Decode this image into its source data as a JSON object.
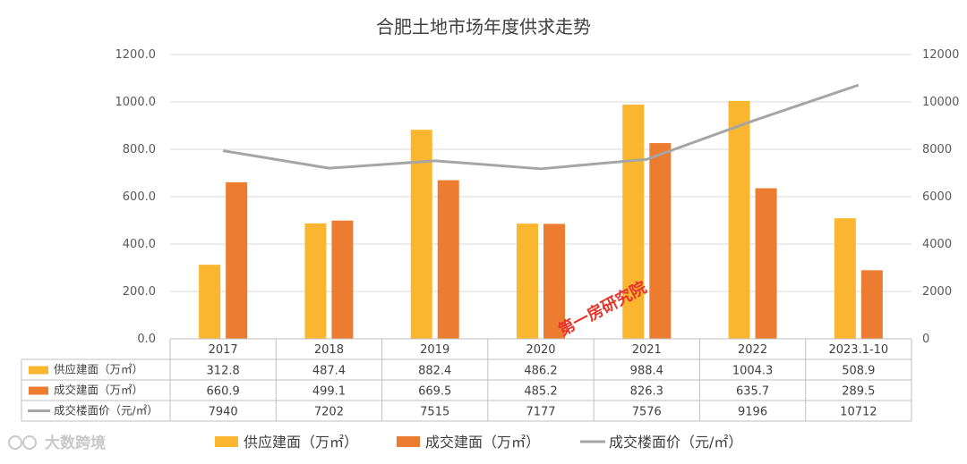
{
  "watermark": {
    "text": "大数跨境"
  },
  "stamp": {
    "text": "第一房研究院"
  },
  "chart_data": {
    "type": "bar",
    "title": "合肥土地市场年度供求走势",
    "categories": [
      "2017",
      "2018",
      "2019",
      "2020",
      "2021",
      "2022",
      "2023.1-10"
    ],
    "left_axis": {
      "ylim": [
        0,
        1200
      ],
      "ticks": [
        "0.0",
        "200.0",
        "400.0",
        "600.0",
        "800.0",
        "1000.0",
        "1200.0"
      ]
    },
    "right_axis": {
      "ylim": [
        0,
        12000
      ],
      "ticks": [
        "0",
        "2000",
        "4000",
        "6000",
        "8000",
        "10000",
        "12000"
      ]
    },
    "series": [
      {
        "name": "供应建面（万㎡）",
        "type": "bar",
        "axis": "left",
        "color": "#fbb62f",
        "values": [
          312.8,
          487.4,
          882.4,
          486.2,
          988.4,
          1004.3,
          508.9
        ],
        "labels": [
          "312.8",
          "487.4",
          "882.4",
          "486.2",
          "988.4",
          "1004.3",
          "508.9"
        ]
      },
      {
        "name": "成交建面（万㎡）",
        "type": "bar",
        "axis": "left",
        "color": "#ec7c30",
        "values": [
          660.9,
          499.1,
          669.5,
          485.2,
          826.3,
          635.7,
          289.5
        ],
        "labels": [
          "660.9",
          "499.1",
          "669.5",
          "485.2",
          "826.3",
          "635.7",
          "289.5"
        ]
      },
      {
        "name": "成交楼面价（元/㎡）",
        "type": "line",
        "axis": "right",
        "color": "#a5a5a5",
        "values": [
          7940,
          7202,
          7515,
          7177,
          7576,
          9196,
          10712
        ],
        "labels": [
          "7940",
          "7202",
          "7515",
          "7177",
          "7576",
          "9196",
          "10712"
        ]
      }
    ],
    "legend": {
      "position": "bottom"
    },
    "data_table": true,
    "grid": true
  }
}
